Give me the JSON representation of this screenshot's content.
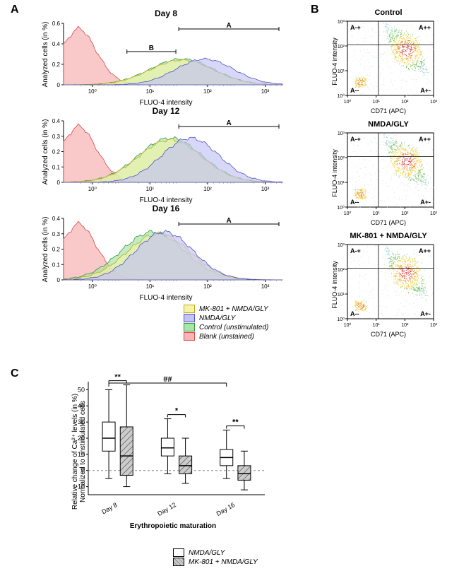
{
  "panelA": {
    "label": "A",
    "histograms": [
      {
        "title": "Day 8",
        "gate_a": true,
        "gate_b": true
      },
      {
        "title": "Day 12",
        "gate_a": true,
        "gate_b": false
      },
      {
        "title": "Day 16",
        "gate_a": true,
        "gate_b": false
      }
    ],
    "x_label": "FLUO-4 intensity",
    "y_label": "Analyzed cells (in %)",
    "x_ticks": [
      "10⁰",
      "10¹",
      "10²",
      "10³"
    ],
    "y_ticks_8": [
      "0",
      "0.2",
      "0.4",
      "0.6"
    ],
    "y_ticks_12": [
      "0",
      "0.1",
      "0.2",
      "0.3",
      "0.4"
    ],
    "y_ticks_16": [
      "0",
      "0.1",
      "0.2",
      "0.3",
      "0.4"
    ],
    "gate_a_label": "A",
    "gate_b_label": "B",
    "colors": {
      "blank": {
        "fill": "#f7b5b5",
        "stroke": "#d94848"
      },
      "control": {
        "fill": "#a8e6a8",
        "stroke": "#3c8f3c"
      },
      "nmda": {
        "fill": "#c2c2f5",
        "stroke": "#5454c7"
      },
      "mk801": {
        "fill": "#f7f2a6",
        "stroke": "#b8ab1f"
      }
    },
    "legend": [
      {
        "label": "MK-801 + NMDA/GLY",
        "key": "mk801"
      },
      {
        "label": "NMDA/GLY",
        "key": "nmda"
      },
      {
        "label": "Control (unstimulated)",
        "key": "control"
      },
      {
        "label": "Blank (unstained)",
        "key": "blank"
      }
    ]
  },
  "panelB": {
    "label": "B",
    "scatters": [
      {
        "title": "Control"
      },
      {
        "title": "NMDA/GLY"
      },
      {
        "title": "MK-801 + NMDA/GLY"
      }
    ],
    "x_label": "CD71 (APC)",
    "y_label": "FLUO-4 intensity",
    "x_ticks": [
      "10⁰",
      "10¹",
      "10²",
      "10³"
    ],
    "y_ticks": [
      "10⁰",
      "10¹",
      "10²",
      "10³"
    ],
    "quadrants": {
      "ul": "A-+",
      "ur": "A++",
      "ll": "A--",
      "lr": "A+-"
    }
  },
  "panelC": {
    "label": "C",
    "y_label_line1": "Relative change of Ca²⁺ levels (in %)",
    "y_label_line2": "Normalized to unstimulated cells",
    "x_label": "Erythropoietic maturation",
    "categories": [
      "Day 8",
      "Day 12",
      "Day 16"
    ],
    "y_ticks": [
      "-10",
      "0",
      "10",
      "20",
      "30",
      "40",
      "50"
    ],
    "ylim": [
      -15,
      55
    ],
    "series": [
      {
        "label": "NMDA/GLY",
        "fill": "#ffffff",
        "stroke": "#000000",
        "hatched": false
      },
      {
        "label": "MK-801 + NMDA/GLY",
        "fill": "#cccccc",
        "stroke": "#000000",
        "hatched": true
      }
    ],
    "boxes": [
      {
        "cat": 0,
        "series": 0,
        "min": -5,
        "q1": 12,
        "median": 20,
        "q3": 30,
        "max": 50
      },
      {
        "cat": 0,
        "series": 1,
        "min": -10,
        "q1": -3,
        "median": 9,
        "q3": 27,
        "max": 53
      },
      {
        "cat": 1,
        "series": 0,
        "min": -2,
        "q1": 9,
        "median": 14,
        "q3": 20,
        "max": 32
      },
      {
        "cat": 1,
        "series": 1,
        "min": -8,
        "q1": -2,
        "median": 3,
        "q3": 9,
        "max": 20
      },
      {
        "cat": 2,
        "series": 0,
        "min": -5,
        "q1": 3,
        "median": 8,
        "q3": 13,
        "max": 25
      },
      {
        "cat": 2,
        "series": 1,
        "min": -12,
        "q1": -6,
        "median": -2,
        "q3": 3,
        "max": 12
      }
    ],
    "sig": {
      "pair_0": "**",
      "pair_1": "*",
      "pair_2": "**",
      "overall": "##"
    },
    "legend": [
      {
        "label": "NMDA/GLY",
        "fill": "#ffffff",
        "hatched": false
      },
      {
        "label": "MK-801 + NMDA/GLY",
        "fill": "#cccccc",
        "hatched": true
      }
    ]
  }
}
